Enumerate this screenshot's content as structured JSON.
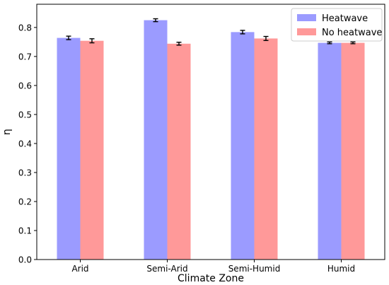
{
  "chart_data": {
    "type": "bar",
    "title": "",
    "xlabel": "Climate Zone",
    "ylabel": "η",
    "categories": [
      "Arid",
      "Semi-Arid",
      "Semi-Humid",
      "Humid"
    ],
    "series": [
      {
        "name": "Heatwave",
        "color": "#9b9bff",
        "values": [
          0.764,
          0.825,
          0.784,
          0.747
        ],
        "errors": [
          0.006,
          0.005,
          0.006,
          0.003
        ]
      },
      {
        "name": "No heatwave",
        "color": "#ff9999",
        "values": [
          0.754,
          0.744,
          0.762,
          0.747
        ],
        "errors": [
          0.007,
          0.005,
          0.007,
          0.003
        ]
      }
    ],
    "ylim": [
      0.0,
      0.88
    ],
    "yticks": [
      "0.0",
      "0.1",
      "0.2",
      "0.3",
      "0.4",
      "0.5",
      "0.6",
      "0.7",
      "0.8"
    ],
    "grid": false,
    "legend_position": "top-right"
  }
}
